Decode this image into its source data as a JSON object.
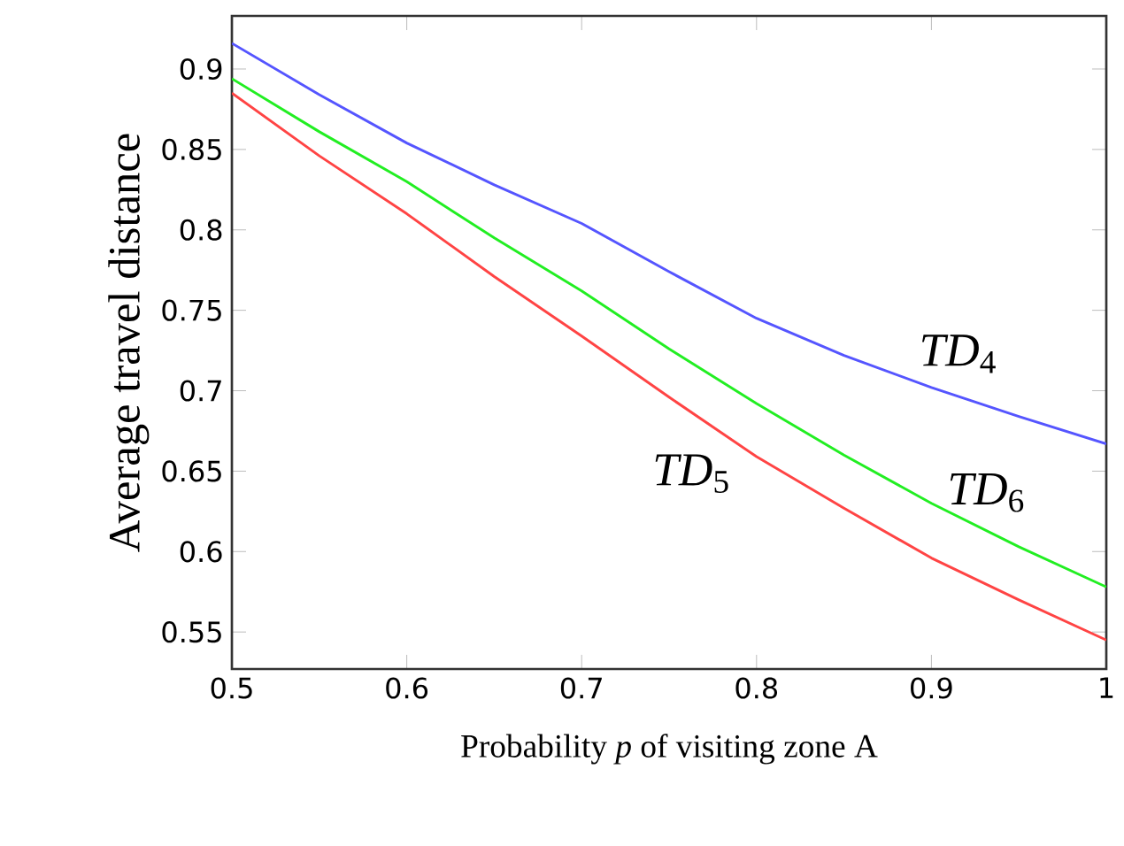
{
  "chart_data": {
    "type": "line",
    "xlabel": "Probability *p* of visiting zone A",
    "ylabel": "Average travel distance",
    "x": [
      0.5,
      0.55,
      0.6,
      0.65,
      0.7,
      0.75,
      0.8,
      0.85,
      0.9,
      0.95,
      1.0
    ],
    "series": [
      {
        "name": "*TD*$_{4}$",
        "color": "#5555ff",
        "values": [
          0.916,
          0.884,
          0.854,
          0.828,
          0.804,
          0.774,
          0.745,
          0.722,
          0.702,
          0.684,
          0.667
        ]
      },
      {
        "name": "*TD*$_{5}$",
        "color": "#ff4444",
        "values": [
          0.885,
          0.846,
          0.81,
          0.771,
          0.734,
          0.696,
          0.659,
          0.627,
          0.596,
          0.57,
          0.545
        ]
      },
      {
        "name": "*TD*$_{6}$",
        "color": "#22ee22",
        "values": [
          0.894,
          0.861,
          0.83,
          0.795,
          0.762,
          0.726,
          0.692,
          0.66,
          0.63,
          0.603,
          0.578
        ]
      }
    ],
    "xlim": [
      0.5,
      1
    ],
    "ylim": [
      0.527,
      0.933
    ],
    "xticks": [
      0.5,
      0.6,
      0.7,
      0.8,
      0.9,
      1
    ],
    "yticks": [
      0.55,
      0.6,
      0.65,
      0.7,
      0.75,
      0.8,
      0.85,
      0.9
    ],
    "grid": false,
    "marker": "none",
    "line_style": "solid"
  }
}
